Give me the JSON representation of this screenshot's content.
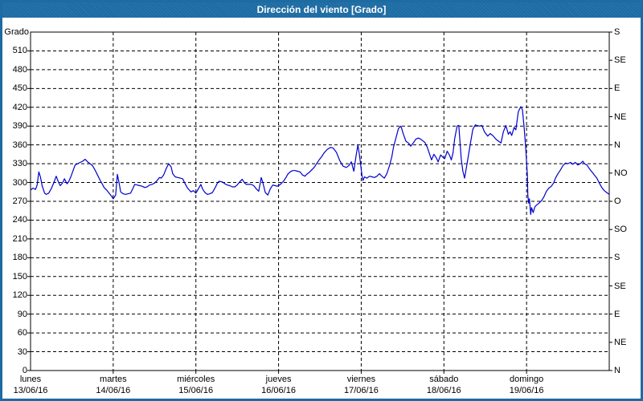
{
  "title": "Dirección del viento [Grado]",
  "colors": {
    "titlebar": "#1c6ba3",
    "titlebar_text": "#ffffff",
    "line": "#0000cd",
    "grid": "#000000",
    "axis": "#000000",
    "background": "#ffffff"
  },
  "chart_data": {
    "type": "line",
    "title": "Dirección del viento [Grado]",
    "ylabel_left": "Grado",
    "grid": "dashed",
    "y_axis_left": {
      "min": 0,
      "max": 540,
      "tick_step": 30,
      "ticks": [
        0,
        30,
        60,
        90,
        120,
        150,
        180,
        210,
        240,
        270,
        300,
        330,
        360,
        390,
        420,
        450,
        480,
        510
      ]
    },
    "y_axis_right": {
      "unit": "compass",
      "tick_step_deg": 45,
      "ticks": [
        {
          "deg": 0,
          "label": "N"
        },
        {
          "deg": 45,
          "label": "NE"
        },
        {
          "deg": 90,
          "label": "E"
        },
        {
          "deg": 135,
          "label": "SE"
        },
        {
          "deg": 180,
          "label": "S"
        },
        {
          "deg": 225,
          "label": "SO"
        },
        {
          "deg": 270,
          "label": "O"
        },
        {
          "deg": 315,
          "label": "NO"
        },
        {
          "deg": 360,
          "label": "N"
        },
        {
          "deg": 405,
          "label": "NE"
        },
        {
          "deg": 450,
          "label": "E"
        },
        {
          "deg": 495,
          "label": "SE"
        },
        {
          "deg": 540,
          "label": "S"
        }
      ]
    },
    "x_axis": {
      "span_days": 7,
      "days": [
        {
          "weekday": "lunes",
          "date": "13/06/16"
        },
        {
          "weekday": "martes",
          "date": "14/06/16"
        },
        {
          "weekday": "miércoles",
          "date": "15/06/16"
        },
        {
          "weekday": "jueves",
          "date": "16/06/16"
        },
        {
          "weekday": "viernes",
          "date": "17/06/16"
        },
        {
          "weekday": "sábado",
          "date": "18/06/16"
        },
        {
          "weekday": "domingo",
          "date": "19/06/16"
        }
      ]
    },
    "series": [
      {
        "name": "Dirección del viento",
        "color": "#0000cd",
        "points": [
          [
            0.0,
            288
          ],
          [
            0.03,
            291
          ],
          [
            0.06,
            289
          ],
          [
            0.08,
            296
          ],
          [
            0.1,
            317
          ],
          [
            0.12,
            309
          ],
          [
            0.14,
            295
          ],
          [
            0.17,
            283
          ],
          [
            0.19,
            281
          ],
          [
            0.22,
            283
          ],
          [
            0.25,
            290
          ],
          [
            0.28,
            299
          ],
          [
            0.31,
            310
          ],
          [
            0.34,
            300
          ],
          [
            0.36,
            295
          ],
          [
            0.39,
            300
          ],
          [
            0.41,
            306
          ],
          [
            0.44,
            298
          ],
          [
            0.46,
            301
          ],
          [
            0.49,
            310
          ],
          [
            0.52,
            321
          ],
          [
            0.54,
            328
          ],
          [
            0.57,
            330
          ],
          [
            0.6,
            332
          ],
          [
            0.63,
            334
          ],
          [
            0.66,
            337
          ],
          [
            0.69,
            333
          ],
          [
            0.72,
            330
          ],
          [
            0.75,
            327
          ],
          [
            0.78,
            320
          ],
          [
            0.81,
            312
          ],
          [
            0.84,
            304
          ],
          [
            0.87,
            297
          ],
          [
            0.89,
            292
          ],
          [
            0.92,
            288
          ],
          [
            0.95,
            283
          ],
          [
            0.98,
            278
          ],
          [
            1.0,
            274
          ],
          [
            1.03,
            280
          ],
          [
            1.05,
            313
          ],
          [
            1.07,
            300
          ],
          [
            1.09,
            285
          ],
          [
            1.12,
            282
          ],
          [
            1.15,
            281
          ],
          [
            1.18,
            282
          ],
          [
            1.21,
            283
          ],
          [
            1.24,
            291
          ],
          [
            1.26,
            297
          ],
          [
            1.29,
            296
          ],
          [
            1.32,
            295
          ],
          [
            1.35,
            294
          ],
          [
            1.38,
            292
          ],
          [
            1.41,
            293
          ],
          [
            1.44,
            296
          ],
          [
            1.47,
            297
          ],
          [
            1.5,
            299
          ],
          [
            1.53,
            303
          ],
          [
            1.56,
            308
          ],
          [
            1.58,
            307
          ],
          [
            1.61,
            312
          ],
          [
            1.64,
            322
          ],
          [
            1.67,
            330
          ],
          [
            1.7,
            325
          ],
          [
            1.72,
            314
          ],
          [
            1.75,
            309
          ],
          [
            1.78,
            308
          ],
          [
            1.81,
            307
          ],
          [
            1.84,
            306
          ],
          [
            1.87,
            298
          ],
          [
            1.9,
            291
          ],
          [
            1.92,
            288
          ],
          [
            1.94,
            285
          ],
          [
            1.97,
            287
          ],
          [
            2.0,
            283
          ],
          [
            2.03,
            290
          ],
          [
            2.06,
            297
          ],
          [
            2.08,
            290
          ],
          [
            2.11,
            284
          ],
          [
            2.14,
            281
          ],
          [
            2.17,
            282
          ],
          [
            2.2,
            284
          ],
          [
            2.23,
            291
          ],
          [
            2.26,
            299
          ],
          [
            2.28,
            302
          ],
          [
            2.32,
            301
          ],
          [
            2.35,
            298
          ],
          [
            2.38,
            296
          ],
          [
            2.41,
            295
          ],
          [
            2.44,
            293
          ],
          [
            2.47,
            293
          ],
          [
            2.5,
            296
          ],
          [
            2.53,
            301
          ],
          [
            2.56,
            305
          ],
          [
            2.59,
            299
          ],
          [
            2.61,
            297
          ],
          [
            2.64,
            297
          ],
          [
            2.67,
            297
          ],
          [
            2.7,
            295
          ],
          [
            2.73,
            290
          ],
          [
            2.76,
            286
          ],
          [
            2.79,
            308
          ],
          [
            2.81,
            300
          ],
          [
            2.84,
            284
          ],
          [
            2.87,
            280
          ],
          [
            2.9,
            290
          ],
          [
            2.93,
            296
          ],
          [
            2.96,
            295
          ],
          [
            2.98,
            294
          ],
          [
            3.0,
            295
          ],
          [
            3.03,
            298
          ],
          [
            3.06,
            302
          ],
          [
            3.09,
            308
          ],
          [
            3.11,
            313
          ],
          [
            3.14,
            317
          ],
          [
            3.17,
            319
          ],
          [
            3.2,
            319
          ],
          [
            3.23,
            318
          ],
          [
            3.26,
            317
          ],
          [
            3.29,
            312
          ],
          [
            3.32,
            310
          ],
          [
            3.34,
            313
          ],
          [
            3.37,
            316
          ],
          [
            3.4,
            320
          ],
          [
            3.43,
            324
          ],
          [
            3.46,
            330
          ],
          [
            3.49,
            336
          ],
          [
            3.52,
            341
          ],
          [
            3.55,
            347
          ],
          [
            3.59,
            353
          ],
          [
            3.63,
            356
          ],
          [
            3.66,
            355
          ],
          [
            3.7,
            348
          ],
          [
            3.74,
            335
          ],
          [
            3.78,
            326
          ],
          [
            3.82,
            324
          ],
          [
            3.85,
            327
          ],
          [
            3.88,
            333
          ],
          [
            3.91,
            318
          ],
          [
            3.94,
            345
          ],
          [
            3.96,
            360
          ],
          [
            3.98,
            342
          ],
          [
            4.01,
            310
          ],
          [
            4.02,
            303
          ],
          [
            4.04,
            309
          ],
          [
            4.07,
            307
          ],
          [
            4.1,
            310
          ],
          [
            4.13,
            309
          ],
          [
            4.16,
            308
          ],
          [
            4.19,
            310
          ],
          [
            4.22,
            314
          ],
          [
            4.25,
            310
          ],
          [
            4.28,
            307
          ],
          [
            4.31,
            314
          ],
          [
            4.34,
            326
          ],
          [
            4.37,
            341
          ],
          [
            4.39,
            356
          ],
          [
            4.42,
            371
          ],
          [
            4.45,
            386
          ],
          [
            4.48,
            390
          ],
          [
            4.51,
            377
          ],
          [
            4.54,
            366
          ],
          [
            4.57,
            363
          ],
          [
            4.6,
            358
          ],
          [
            4.63,
            363
          ],
          [
            4.66,
            369
          ],
          [
            4.69,
            371
          ],
          [
            4.72,
            369
          ],
          [
            4.74,
            367
          ],
          [
            4.77,
            364
          ],
          [
            4.8,
            356
          ],
          [
            4.83,
            344
          ],
          [
            4.85,
            336
          ],
          [
            4.88,
            345
          ],
          [
            4.91,
            339
          ],
          [
            4.93,
            333
          ],
          [
            4.96,
            344
          ],
          [
            4.99,
            340
          ],
          [
            5.01,
            338
          ],
          [
            5.04,
            350
          ],
          [
            5.07,
            343
          ],
          [
            5.09,
            336
          ],
          [
            5.11,
            347
          ],
          [
            5.13,
            370
          ],
          [
            5.16,
            390
          ],
          [
            5.18,
            391
          ],
          [
            5.21,
            337
          ],
          [
            5.23,
            318
          ],
          [
            5.25,
            307
          ],
          [
            5.28,
            330
          ],
          [
            5.32,
            362
          ],
          [
            5.35,
            385
          ],
          [
            5.38,
            392
          ],
          [
            5.4,
            391
          ],
          [
            5.43,
            390
          ],
          [
            5.46,
            391
          ],
          [
            5.49,
            381
          ],
          [
            5.53,
            374
          ],
          [
            5.56,
            378
          ],
          [
            5.59,
            375
          ],
          [
            5.63,
            369
          ],
          [
            5.66,
            366
          ],
          [
            5.69,
            363
          ],
          [
            5.72,
            381
          ],
          [
            5.75,
            391
          ],
          [
            5.78,
            377
          ],
          [
            5.8,
            381
          ],
          [
            5.82,
            375
          ],
          [
            5.85,
            388
          ],
          [
            5.87,
            384
          ],
          [
            5.9,
            413
          ],
          [
            5.93,
            421
          ],
          [
            5.95,
            416
          ],
          [
            5.97,
            388
          ],
          [
            5.99,
            355
          ],
          [
            6.01,
            310
          ],
          [
            6.015,
            280
          ],
          [
            6.025,
            267
          ],
          [
            6.035,
            274
          ],
          [
            6.05,
            249
          ],
          [
            6.06,
            260
          ],
          [
            6.08,
            252
          ],
          [
            6.1,
            261
          ],
          [
            6.12,
            264
          ],
          [
            6.15,
            267
          ],
          [
            6.18,
            271
          ],
          [
            6.21,
            277
          ],
          [
            6.24,
            286
          ],
          [
            6.27,
            291
          ],
          [
            6.3,
            294
          ],
          [
            6.33,
            300
          ],
          [
            6.35,
            307
          ],
          [
            6.38,
            314
          ],
          [
            6.41,
            320
          ],
          [
            6.44,
            327
          ],
          [
            6.47,
            331
          ],
          [
            6.5,
            330
          ],
          [
            6.53,
            332
          ],
          [
            6.56,
            329
          ],
          [
            6.59,
            332
          ],
          [
            6.62,
            328
          ],
          [
            6.65,
            330
          ],
          [
            6.68,
            334
          ],
          [
            6.7,
            330
          ],
          [
            6.73,
            328
          ],
          [
            6.76,
            322
          ],
          [
            6.79,
            317
          ],
          [
            6.82,
            312
          ],
          [
            6.85,
            307
          ],
          [
            6.88,
            299
          ],
          [
            6.91,
            292
          ],
          [
            6.94,
            287
          ],
          [
            6.97,
            284
          ],
          [
            7.0,
            281
          ]
        ]
      }
    ]
  }
}
